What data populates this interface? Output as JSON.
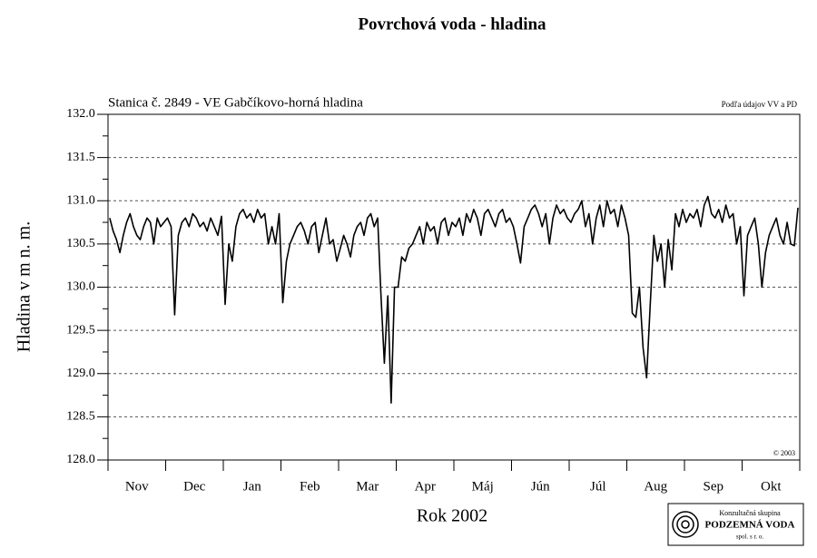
{
  "chart_data": {
    "type": "line",
    "title": "Povrchová voda - hladina",
    "subtitle": "Stanica č. 2849 - VE Gabčíkovo-horná hladina",
    "source_note": "Podľa údajov VV a PD",
    "copyright": "© 2003",
    "y_label": "Hladina v m n. m.",
    "x_label": "Rok 2002",
    "logo": {
      "line1": "Konzultačná skupina",
      "line2": "PODZEMNÁ VODA",
      "line3": "spol. s r. o."
    },
    "color": "#000000",
    "grid": true,
    "ylim": [
      128.0,
      132.0
    ],
    "yticks": [
      {
        "value": 128.0,
        "label": "128.0"
      },
      {
        "value": 128.5,
        "label": "128.5"
      },
      {
        "value": 129.0,
        "label": "129.0"
      },
      {
        "value": 129.5,
        "label": "129.5"
      },
      {
        "value": 130.0,
        "label": "130.0"
      },
      {
        "value": 130.5,
        "label": "130.5"
      },
      {
        "value": 131.0,
        "label": "131.0"
      },
      {
        "value": 131.5,
        "label": "131.5"
      },
      {
        "value": 132.0,
        "label": "132.0"
      }
    ],
    "yticks_minor": [
      128.25,
      128.75,
      129.25,
      129.75,
      130.25,
      130.75,
      131.25,
      131.75
    ],
    "categories": [
      "Nov",
      "Dec",
      "Jan",
      "Feb",
      "Mar",
      "Apr",
      "Máj",
      "Jún",
      "Júl",
      "Aug",
      "Sep",
      "Okt"
    ],
    "values": [
      [
        130.8,
        130.65,
        130.55,
        130.4,
        130.6,
        130.75,
        130.85,
        130.7,
        130.6,
        130.55,
        130.7,
        130.8,
        130.75,
        130.5,
        130.8,
        130.7,
        130.75
      ],
      [
        130.8,
        130.7,
        129.68,
        130.6,
        130.75,
        130.8,
        130.7,
        130.85,
        130.8,
        130.7,
        130.75,
        130.65,
        130.8,
        130.7,
        130.6,
        130.82
      ],
      [
        129.8,
        130.5,
        130.3,
        130.7,
        130.85,
        130.9,
        130.8,
        130.85,
        130.75,
        130.9,
        130.8,
        130.85,
        130.5,
        130.7,
        130.5,
        130.85
      ],
      [
        129.82,
        130.3,
        130.5,
        130.6,
        130.7,
        130.75,
        130.65,
        130.5,
        130.7,
        130.75,
        130.4,
        130.6,
        130.8,
        130.5,
        130.55,
        130.3
      ],
      [
        130.45,
        130.6,
        130.5,
        130.35,
        130.6,
        130.7,
        130.75,
        130.6,
        130.8,
        130.85,
        130.7,
        130.8,
        129.9,
        129.12,
        129.9,
        128.66,
        130.0
      ],
      [
        130.0,
        130.35,
        130.3,
        130.45,
        130.5,
        130.6,
        130.7,
        130.5,
        130.75,
        130.65,
        130.7,
        130.5,
        130.75,
        130.8,
        130.6,
        130.75
      ],
      [
        130.7,
        130.8,
        130.6,
        130.85,
        130.75,
        130.9,
        130.8,
        130.6,
        130.85,
        130.9,
        130.8,
        130.7,
        130.85,
        130.9,
        130.75,
        130.8
      ],
      [
        130.7,
        130.5,
        130.28,
        130.7,
        130.8,
        130.9,
        130.95,
        130.85,
        130.7,
        130.85,
        130.5,
        130.8,
        130.95,
        130.85,
        130.9,
        130.8
      ],
      [
        130.75,
        130.85,
        130.9,
        131.0,
        130.7,
        130.85,
        130.5,
        130.8,
        130.95,
        130.7,
        131.0,
        130.85,
        130.9,
        130.7,
        130.95,
        130.8
      ],
      [
        130.6,
        129.7,
        129.65,
        130.0,
        129.3,
        128.95,
        129.8,
        130.6,
        130.3,
        130.5,
        130.0,
        130.55,
        130.2,
        130.85,
        130.7,
        130.9
      ],
      [
        130.75,
        130.85,
        130.8,
        130.9,
        130.7,
        130.95,
        131.05,
        130.85,
        130.8,
        130.9,
        130.75,
        130.95,
        130.8,
        130.85,
        130.5,
        130.7
      ],
      [
        129.9,
        130.6,
        130.7,
        130.8,
        130.5,
        130.0,
        130.4,
        130.6,
        130.7,
        130.8,
        130.6,
        130.5,
        130.75,
        130.5,
        130.48,
        130.92
      ]
    ]
  }
}
